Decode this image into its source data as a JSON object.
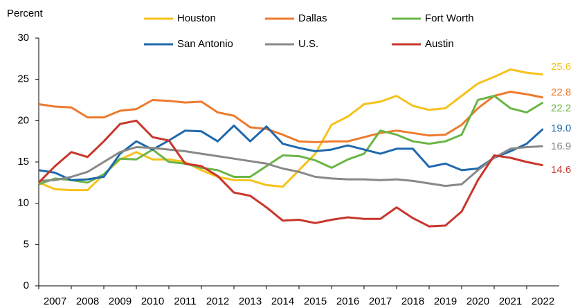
{
  "chart_data": {
    "type": "line",
    "y_axis_label": "Percent",
    "x": [
      2007,
      2007.5,
      2008,
      2008.5,
      2009,
      2009.5,
      2010,
      2010.5,
      2011,
      2011.5,
      2012,
      2012.5,
      2013,
      2013.5,
      2014,
      2014.5,
      2015,
      2015.5,
      2016,
      2016.5,
      2017,
      2017.5,
      2018,
      2018.5,
      2019,
      2019.5,
      2020,
      2020.5,
      2021,
      2021.5,
      2022,
      2022.5
    ],
    "xlim": [
      2007,
      2023
    ],
    "xticks": [
      2007,
      2008,
      2009,
      2010,
      2011,
      2012,
      2013,
      2014,
      2015,
      2016,
      2017,
      2018,
      2019,
      2020,
      2021,
      2022
    ],
    "ylim": [
      0,
      30
    ],
    "yticks": [
      0,
      5,
      10,
      15,
      20,
      25,
      30
    ],
    "grid": false,
    "series": [
      {
        "name": "Houston",
        "color": "#f6c21a",
        "end_label": "25.6",
        "values": [
          12.5,
          11.7,
          11.6,
          11.6,
          13.5,
          15.3,
          16.2,
          15.3,
          15.3,
          15,
          14,
          13.2,
          12.8,
          12.8,
          12.2,
          12,
          14,
          16,
          19.5,
          20.5,
          22,
          22.3,
          23,
          21.8,
          21.3,
          21.5,
          23,
          24.5,
          25.3,
          26.2,
          25.8,
          25.6
        ]
      },
      {
        "name": "Dallas",
        "color": "#ee7a2c",
        "end_label": "22.8",
        "values": [
          22,
          21.7,
          21.6,
          20.4,
          20.4,
          21.2,
          21.4,
          22.5,
          22.4,
          22.2,
          22.3,
          21,
          20.6,
          19.2,
          19,
          18.3,
          17.5,
          17.4,
          17.5,
          17.5,
          18,
          18.5,
          18.8,
          18.5,
          18.2,
          18.3,
          19.5,
          21.5,
          23,
          23.5,
          23.2,
          22.8
        ]
      },
      {
        "name": "Fort Worth",
        "color": "#6ab546",
        "end_label": "22.2",
        "values": [
          12.3,
          13,
          12.8,
          12.5,
          13.5,
          15.4,
          15.3,
          16.5,
          15,
          14.8,
          14.3,
          14,
          13.2,
          13.2,
          14.5,
          15.8,
          15.7,
          15.2,
          14.3,
          15.3,
          16,
          18.8,
          18.3,
          17.5,
          17.2,
          17.5,
          18.3,
          22.5,
          23,
          21.5,
          21,
          22.2
        ]
      },
      {
        "name": "San Antonio",
        "color": "#1f68ad",
        "end_label": "19.0",
        "values": [
          14,
          13.7,
          12.8,
          12.9,
          13.2,
          16,
          17.5,
          16.5,
          17.6,
          18.8,
          18.7,
          17.5,
          19.4,
          17.5,
          19.3,
          17.2,
          16.7,
          16.3,
          16.5,
          17,
          16.5,
          16,
          16.6,
          16.6,
          14.4,
          14.8,
          14,
          14.2,
          15.5,
          16.3,
          17.2,
          19
        ]
      },
      {
        "name": "U.S.",
        "color": "#888888",
        "end_label": "16.9",
        "values": [
          12.7,
          12.8,
          13.2,
          13.8,
          15,
          16.2,
          16.8,
          16.7,
          16.5,
          16.3,
          16,
          15.7,
          15.4,
          15.1,
          14.8,
          14.2,
          13.8,
          13.2,
          13,
          12.9,
          12.9,
          12.8,
          12.9,
          12.7,
          12.4,
          12.1,
          12.3,
          14,
          15.5,
          16.6,
          16.8,
          16.9
        ]
      },
      {
        "name": "Austin",
        "color": "#c8352b",
        "end_label": "14.6",
        "values": [
          12.5,
          14.5,
          16.2,
          15.6,
          17.5,
          19.6,
          20,
          18,
          17.6,
          14.8,
          14.5,
          13.3,
          11.3,
          10.9,
          9.5,
          7.9,
          8,
          7.6,
          8,
          8.3,
          8.1,
          8.1,
          9.5,
          8.2,
          7.2,
          7.3,
          9,
          12.8,
          15.8,
          15.5,
          15,
          14.6
        ]
      }
    ]
  }
}
